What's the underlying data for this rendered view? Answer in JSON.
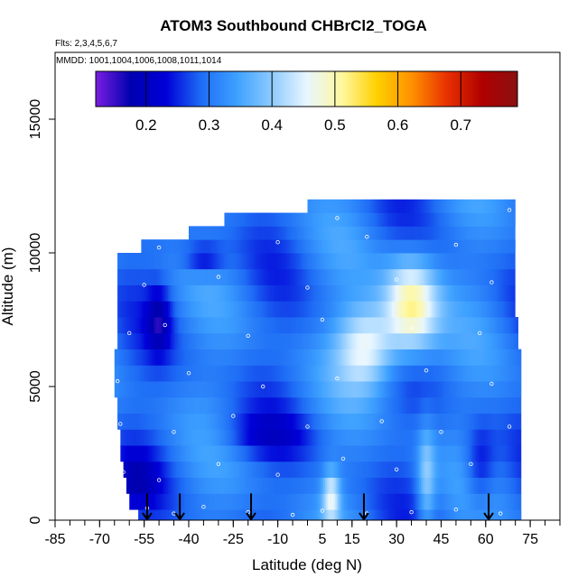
{
  "chart_data": {
    "type": "heatmap",
    "title": "ATOM3 Southbound CHBrCl2_TOGA",
    "flights_note": "Flts: 2,3,4,5,6,7",
    "dates_note": "MMDD: 1001,1004,1006,1008,1011,1014",
    "xlabel": "Latitude (deg N)",
    "ylabel": "Altitude (m)",
    "xlim": [
      -85,
      85
    ],
    "ylim": [
      0,
      17500
    ],
    "x_ticks": [
      -85,
      -70,
      -55,
      -40,
      -25,
      -10,
      5,
      15,
      30,
      45,
      60,
      75
    ],
    "x_tick_labels": [
      "-85",
      "-70",
      "-55",
      "-40",
      "-25",
      "-10",
      "5",
      "15",
      "30",
      "45",
      "60",
      "75"
    ],
    "y_ticks": [
      0,
      5000,
      10000,
      15000
    ],
    "y_tick_labels": [
      "0",
      "5000",
      "10000",
      "15000"
    ],
    "colorbar": {
      "range": [
        0.12,
        0.79
      ],
      "ticks": [
        0.2,
        0.3,
        0.4,
        0.5,
        0.6,
        0.7
      ],
      "tick_labels": [
        "0.2",
        "0.3",
        "0.4",
        "0.5",
        "0.6",
        "0.7"
      ],
      "colors": [
        "#7a1fe0",
        "#0000b0",
        "#0000d8",
        "#1e6cf5",
        "#3da0ff",
        "#8ccaff",
        "#e8f6ff",
        "#fff8a0",
        "#ffd000",
        "#ff9000",
        "#e83000",
        "#b00000",
        "#8b1010"
      ]
    },
    "profile_bands": [
      {
        "alt_bottom": 0,
        "alt_top": 400,
        "lat_min": -57,
        "lat_max": 72
      },
      {
        "alt_bottom": 400,
        "alt_top": 1000,
        "lat_min": -60,
        "lat_max": 72
      },
      {
        "alt_bottom": 1000,
        "alt_top": 1600,
        "lat_min": -61,
        "lat_max": 72
      },
      {
        "alt_bottom": 1600,
        "alt_top": 2200,
        "lat_min": -62,
        "lat_max": 72
      },
      {
        "alt_bottom": 2200,
        "alt_top": 2800,
        "lat_min": -63,
        "lat_max": 72
      },
      {
        "alt_bottom": 2800,
        "alt_top": 3400,
        "lat_min": -63,
        "lat_max": 72
      },
      {
        "alt_bottom": 3400,
        "alt_top": 4000,
        "lat_min": -64,
        "lat_max": 72
      },
      {
        "alt_bottom": 4000,
        "alt_top": 4600,
        "lat_min": -64,
        "lat_max": 72
      },
      {
        "alt_bottom": 4600,
        "alt_top": 5200,
        "lat_min": -65,
        "lat_max": 72
      },
      {
        "alt_bottom": 5200,
        "alt_top": 5800,
        "lat_min": -65,
        "lat_max": 72
      },
      {
        "alt_bottom": 5800,
        "alt_top": 6400,
        "lat_min": -65,
        "lat_max": 72
      },
      {
        "alt_bottom": 6400,
        "alt_top": 7000,
        "lat_min": -64,
        "lat_max": 71
      },
      {
        "alt_bottom": 7000,
        "alt_top": 7600,
        "lat_min": -64,
        "lat_max": 71
      },
      {
        "alt_bottom": 7600,
        "alt_top": 8200,
        "lat_min": -64,
        "lat_max": 70
      },
      {
        "alt_bottom": 8200,
        "alt_top": 8800,
        "lat_min": -64,
        "lat_max": 70
      },
      {
        "alt_bottom": 8800,
        "alt_top": 9400,
        "lat_min": -64,
        "lat_max": 70
      },
      {
        "alt_bottom": 9400,
        "alt_top": 10000,
        "lat_min": -64,
        "lat_max": 70
      },
      {
        "alt_bottom": 10000,
        "alt_top": 10500,
        "lat_min": -56,
        "lat_max": 70
      },
      {
        "alt_bottom": 10500,
        "alt_top": 11000,
        "lat_min": -40,
        "lat_max": 70
      },
      {
        "alt_bottom": 11000,
        "alt_top": 11500,
        "lat_min": -28,
        "lat_max": 70
      },
      {
        "alt_bottom": 11500,
        "alt_top": 12000,
        "lat_min": 0,
        "lat_max": 70
      }
    ],
    "concentration_field": {
      "base": 0.3,
      "features": [
        {
          "lat": 35,
          "alt": 8000,
          "lat_width": 9,
          "alt_width": 1800,
          "value": 0.22
        },
        {
          "lat": 20,
          "alt": 6500,
          "lat_width": 10,
          "alt_width": 1500,
          "value": 0.17
        },
        {
          "lat": 8,
          "alt": 900,
          "lat_width": 3,
          "alt_width": 1000,
          "value": 0.14
        },
        {
          "lat": 40,
          "alt": 1500,
          "lat_width": 3,
          "alt_width": 2000,
          "value": 0.1
        },
        {
          "lat": -50,
          "alt": 7500,
          "lat_width": 4,
          "alt_width": 1200,
          "value": -0.1
        },
        {
          "lat": -35,
          "alt": 9800,
          "lat_width": 7,
          "alt_width": 600,
          "value": -0.09
        },
        {
          "lat": -15,
          "alt": 3200,
          "lat_width": 15,
          "alt_width": 800,
          "value": -0.06
        },
        {
          "lat": -58,
          "alt": 1500,
          "lat_width": 8,
          "alt_width": 1000,
          "value": -0.08
        },
        {
          "lat": 58,
          "alt": 2000,
          "lat_width": 5,
          "alt_width": 1500,
          "value": -0.08
        }
      ]
    },
    "sample_points": [
      {
        "lat": -60,
        "alt": 200
      },
      {
        "lat": -54,
        "alt": 450
      },
      {
        "lat": -45,
        "alt": 250
      },
      {
        "lat": -35,
        "alt": 500
      },
      {
        "lat": -20,
        "alt": 300
      },
      {
        "lat": -5,
        "alt": 200
      },
      {
        "lat": 5,
        "alt": 350
      },
      {
        "lat": 20,
        "alt": 250
      },
      {
        "lat": 35,
        "alt": 300
      },
      {
        "lat": 50,
        "alt": 400
      },
      {
        "lat": 65,
        "alt": 250
      },
      {
        "lat": -62,
        "alt": 1800
      },
      {
        "lat": -50,
        "alt": 1500
      },
      {
        "lat": -30,
        "alt": 2100
      },
      {
        "lat": -10,
        "alt": 1700
      },
      {
        "lat": 12,
        "alt": 2300
      },
      {
        "lat": 30,
        "alt": 1900
      },
      {
        "lat": 55,
        "alt": 2100
      },
      {
        "lat": -63,
        "alt": 3600
      },
      {
        "lat": -45,
        "alt": 3300
      },
      {
        "lat": -25,
        "alt": 3900
      },
      {
        "lat": 0,
        "alt": 3500
      },
      {
        "lat": 25,
        "alt": 3700
      },
      {
        "lat": 45,
        "alt": 3300
      },
      {
        "lat": 68,
        "alt": 3500
      },
      {
        "lat": -64,
        "alt": 5200
      },
      {
        "lat": -40,
        "alt": 5500
      },
      {
        "lat": -15,
        "alt": 5000
      },
      {
        "lat": 10,
        "alt": 5300
      },
      {
        "lat": 40,
        "alt": 5600
      },
      {
        "lat": 62,
        "alt": 5100
      },
      {
        "lat": -60,
        "alt": 7000
      },
      {
        "lat": -48,
        "alt": 7300
      },
      {
        "lat": -20,
        "alt": 6900
      },
      {
        "lat": 5,
        "alt": 7500
      },
      {
        "lat": 35,
        "alt": 7200
      },
      {
        "lat": 58,
        "alt": 7000
      },
      {
        "lat": -55,
        "alt": 8800
      },
      {
        "lat": -30,
        "alt": 9100
      },
      {
        "lat": 0,
        "alt": 8700
      },
      {
        "lat": 30,
        "alt": 9000
      },
      {
        "lat": 62,
        "alt": 8900
      },
      {
        "lat": -50,
        "alt": 10200
      },
      {
        "lat": -10,
        "alt": 10400
      },
      {
        "lat": 20,
        "alt": 10600
      },
      {
        "lat": 50,
        "alt": 10300
      },
      {
        "lat": 68,
        "alt": 11600
      },
      {
        "lat": 10,
        "alt": 11300
      }
    ],
    "arrow_latitudes": [
      -54,
      -43,
      -19,
      19,
      61
    ]
  }
}
